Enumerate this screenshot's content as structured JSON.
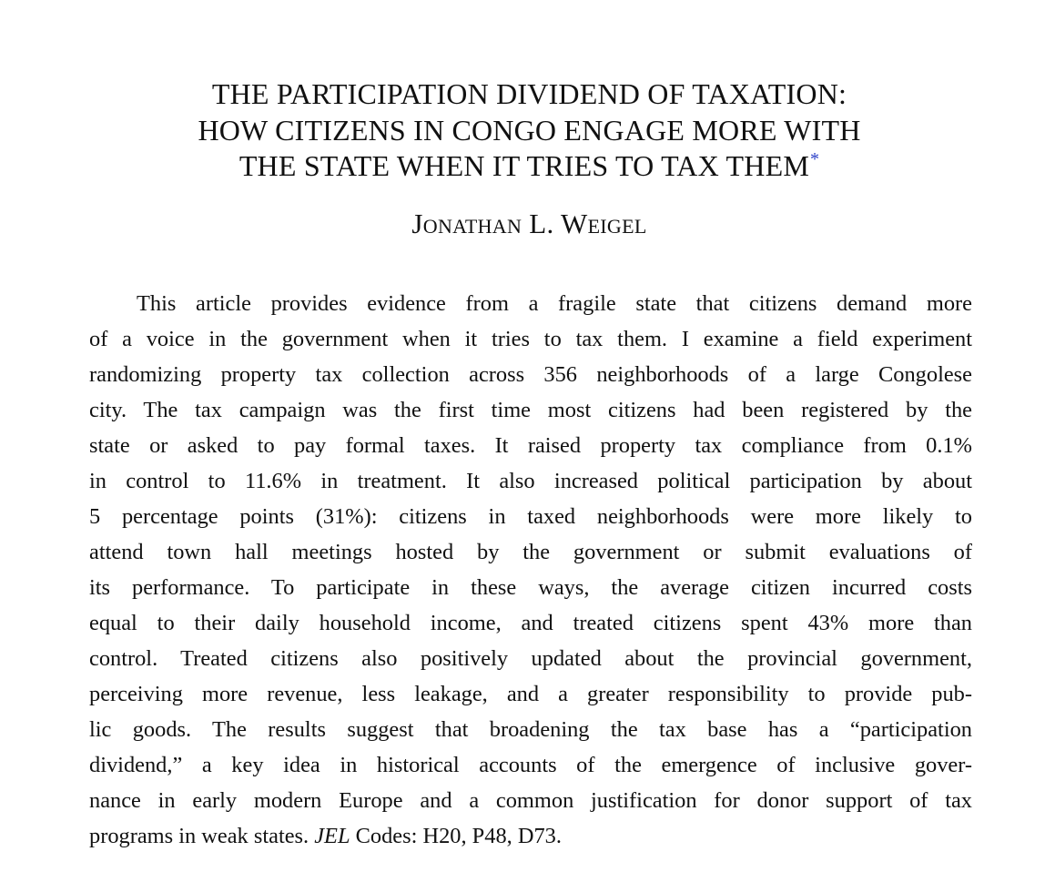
{
  "paper": {
    "title_lines": [
      "THE PARTICIPATION DIVIDEND OF TAXATION:",
      "HOW CITIZENS IN CONGO ENGAGE MORE WITH",
      "THE STATE WHEN IT TRIES TO TAX THEM"
    ],
    "title_footnote_mark": "*",
    "author": "Jonathan L. Weigel",
    "abstract_lines": [
      "This article provides evidence from a fragile state that citizens demand more",
      "of a voice in the government when it tries to tax them. I examine a field experiment",
      "randomizing property tax collection across 356 neighborhoods of a large Congolese",
      "city. The tax campaign was the first time most citizens had been registered by the",
      "state or asked to pay formal taxes. It raised property tax compliance from 0.1%",
      "in control to 11.6% in treatment. It also increased political participation by about",
      "5 percentage points (31%): citizens in taxed neighborhoods were more likely to",
      "attend town hall meetings hosted by the government or submit evaluations of",
      "its performance. To participate in these ways, the average citizen incurred costs",
      "equal to their daily household income, and treated citizens spent 43% more than",
      "control. Treated citizens also positively updated about the provincial government,",
      "perceiving more revenue, less leakage, and a greater responsibility to provide pub-",
      "lic goods. The results suggest that broadening the tax base has a “participation",
      "dividend,” a key idea in historical accounts of the emergence of inclusive gover-",
      "nance in early modern Europe and a common justification for donor support of tax"
    ],
    "abstract_last_line_prefix": "programs in weak states. ",
    "jel_italic": "JEL",
    "jel_codes": " Codes: H20, P48, D73."
  },
  "colors": {
    "text": "#111111",
    "footnote_link": "#2b3fc7"
  }
}
